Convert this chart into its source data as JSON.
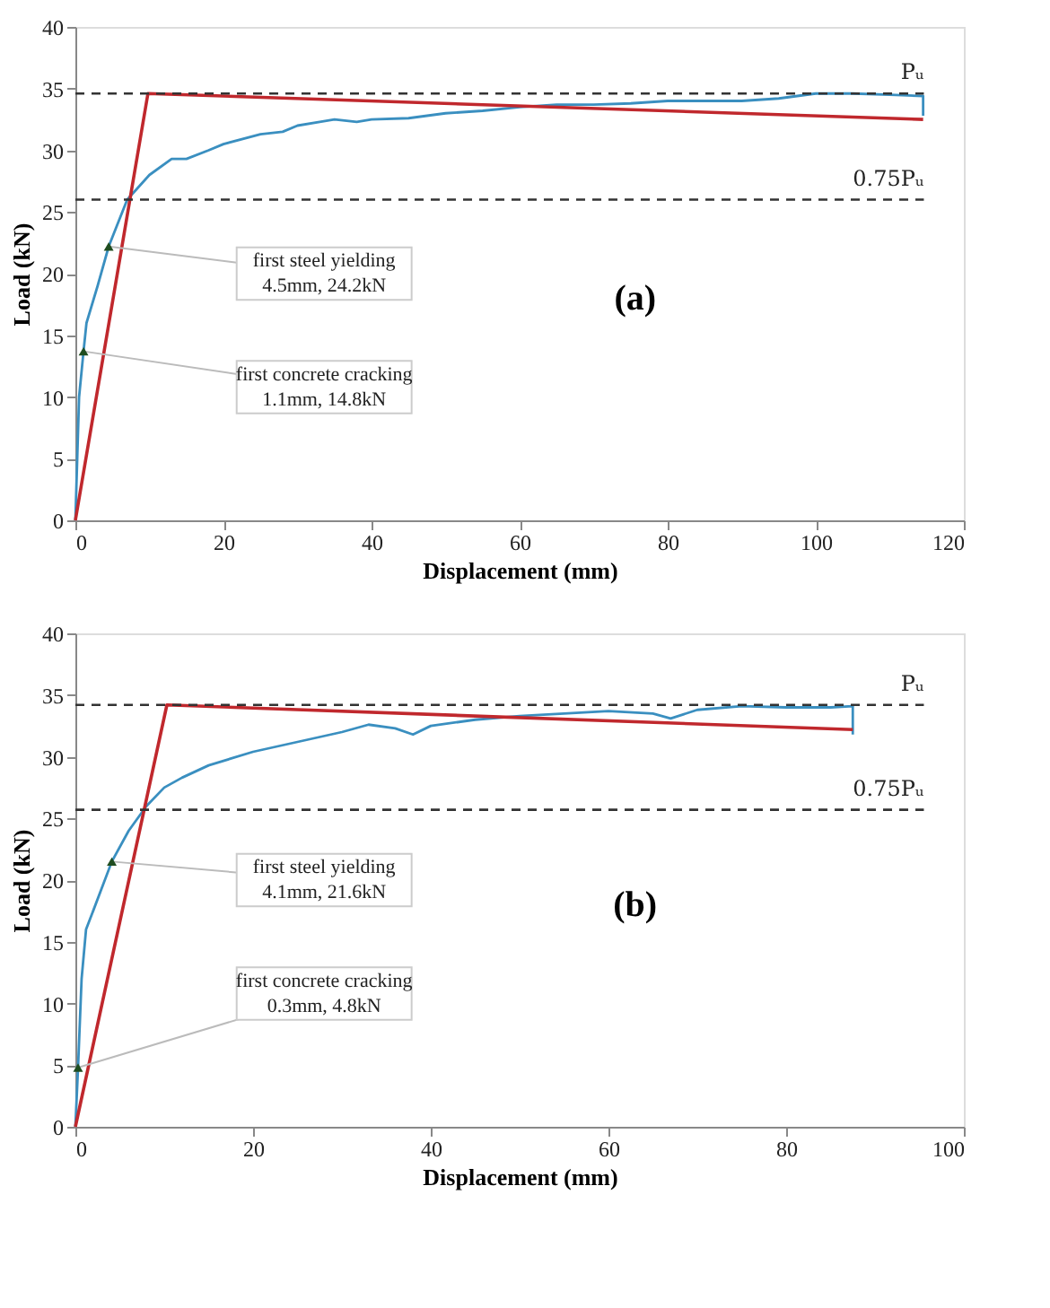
{
  "chart_data": [
    {
      "type": "line",
      "xlabel": "Displacement (mm)",
      "ylabel": "Load (kN)",
      "xlim": [
        0,
        120
      ],
      "ylim": [
        0,
        40
      ],
      "xticks": [
        0,
        20,
        40,
        60,
        80,
        100,
        120
      ],
      "yticks": [
        0,
        5,
        10,
        15,
        20,
        25,
        30,
        35,
        40
      ],
      "grid": false,
      "marker": "none",
      "line_style": "solid",
      "series": [
        {
          "color": "#3a8fc0",
          "x": [
            0,
            0.5,
            1.1,
            1.5,
            3,
            4.5,
            7,
            10,
            13,
            15,
            18,
            20,
            25,
            28,
            30,
            33,
            35,
            38,
            40,
            45,
            50,
            55,
            60,
            65,
            70,
            75,
            80,
            85,
            90,
            95,
            100,
            105,
            110,
            114.5,
            114.5
          ],
          "values": [
            0,
            10,
            13.7,
            16,
            19,
            22.2,
            26,
            28,
            29.3,
            29.3,
            30,
            30.5,
            31.3,
            31.5,
            32,
            32.3,
            32.5,
            32.3,
            32.5,
            32.6,
            33,
            33.2,
            33.5,
            33.7,
            33.7,
            33.8,
            34,
            34,
            34,
            34.2,
            34.6,
            34.6,
            34.5,
            34.4,
            32.8
          ]
        },
        {
          "color": "#c0282d",
          "x": [
            0,
            9.8,
            114.5
          ],
          "values": [
            0,
            34.6,
            32.5
          ]
        }
      ],
      "ref_lines": [
        {
          "axis": "y",
          "value": 34.6,
          "label": "Pᵤ",
          "color": "#333333",
          "line_style": "dashed"
        },
        {
          "axis": "y",
          "value": 26,
          "label": "0.75Pᵤ",
          "color": "#333333",
          "line_style": "dashed"
        }
      ],
      "annotations": [
        {
          "text": "first steel yielding\n4.5mm, 24.2kN",
          "x": 4.5,
          "y": 22.2
        },
        {
          "text": "first concrete cracking\n1.1mm, 14.8kN",
          "x": 1.1,
          "y": 13.7
        },
        "(a)"
      ]
    },
    {
      "type": "line",
      "xlabel": "Displacement (mm)",
      "ylabel": "Load (kN)",
      "xlim": [
        0,
        100
      ],
      "ylim": [
        0,
        40
      ],
      "xticks": [
        0,
        20,
        40,
        60,
        80,
        100
      ],
      "yticks": [
        0,
        5,
        10,
        15,
        20,
        25,
        30,
        35,
        40
      ],
      "grid": false,
      "marker": "none",
      "line_style": "solid",
      "series": [
        {
          "color": "#3a8fc0",
          "x": [
            0,
            0.3,
            0.7,
            1.2,
            2,
            4.1,
            6,
            8,
            10,
            12,
            15,
            20,
            25,
            30,
            33,
            36,
            38,
            40,
            45,
            50,
            55,
            60,
            65,
            67,
            70,
            75,
            80,
            85,
            87.5,
            87.5
          ],
          "values": [
            0,
            4.8,
            12,
            16,
            17.5,
            21.5,
            24,
            26,
            27.5,
            28.3,
            29.3,
            30.4,
            31.2,
            32,
            32.6,
            32.3,
            31.8,
            32.5,
            33,
            33.3,
            33.5,
            33.7,
            33.5,
            33.1,
            33.8,
            34.1,
            34,
            34,
            34.1,
            31.8
          ]
        },
        {
          "color": "#c0282d",
          "x": [
            0,
            10.3,
            87.5
          ],
          "values": [
            0,
            34.2,
            32.2
          ]
        }
      ],
      "ref_lines": [
        {
          "axis": "y",
          "value": 34.2,
          "label": "Pᵤ",
          "color": "#333333",
          "line_style": "dashed"
        },
        {
          "axis": "y",
          "value": 25.7,
          "label": "0.75Pᵤ",
          "color": "#333333",
          "line_style": "dashed"
        }
      ],
      "annotations": [
        {
          "text": "first steel yielding\n4.1mm, 21.6kN",
          "x": 4.1,
          "y": 21.5
        },
        {
          "text": "first concrete cracking\n0.3mm, 4.8kN",
          "x": 0.3,
          "y": 4.8
        },
        "(b)"
      ]
    }
  ]
}
